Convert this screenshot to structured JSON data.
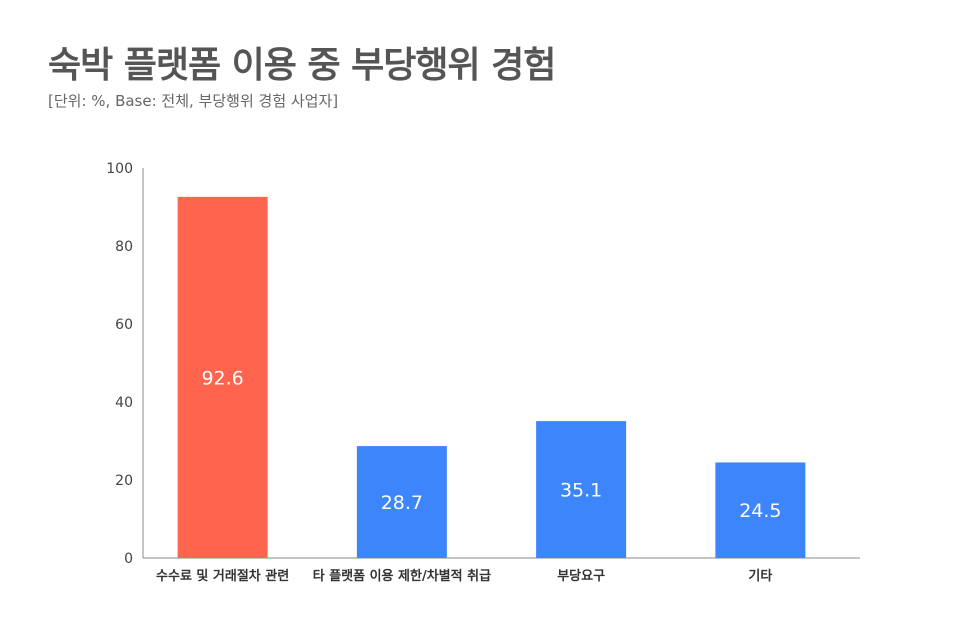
{
  "title": "숙박 플랫폼 이용 중 부당행위 경험",
  "subtitle": "[단위: %, Base: 전체, 부당행위 경험 사업자]",
  "colors": {
    "highlight": "#FF644E",
    "default": "#3D85FB",
    "axis": "#888888"
  },
  "chart_data": {
    "type": "bar",
    "categories": [
      "수수료 및 거래절차 관련",
      "타 플랫폼 이용 제한/차별적 취급",
      "부당요구",
      "기타"
    ],
    "values": [
      92.6,
      28.7,
      35.1,
      24.5
    ],
    "highlight_index": 0,
    "ylim": [
      0,
      100
    ],
    "yticks": [
      0,
      20,
      40,
      60,
      80,
      100
    ],
    "grid": false,
    "legend": "none"
  }
}
